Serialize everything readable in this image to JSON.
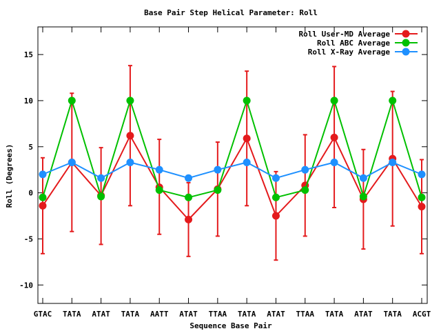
{
  "chart_data": {
    "type": "line",
    "title": "Base Pair Step Helical Parameter: Roll",
    "xlabel": "Sequence Base Pair",
    "ylabel": "Roll (Degrees)",
    "ylim": [
      -12,
      18
    ],
    "yticks": [
      -10,
      -5,
      0,
      5,
      10,
      15
    ],
    "categories": [
      "GTAC",
      "TATA",
      "ATAT",
      "TATA",
      "AATT",
      "ATAT",
      "TTAA",
      "TATA",
      "ATAT",
      "TTAA",
      "TATA",
      "ATAT",
      "TATA",
      "ACGT"
    ],
    "grid": false,
    "legend_position": "top-right",
    "series": [
      {
        "name": "Roll User-MD Average",
        "color": "#e41a1c",
        "values": [
          -1.4,
          3.3,
          -0.3,
          6.2,
          0.6,
          -2.9,
          0.4,
          5.9,
          -2.5,
          0.8,
          6.0,
          -0.7,
          3.7,
          -1.5
        ],
        "error_low": [
          -6.6,
          -4.2,
          -5.6,
          -1.4,
          -4.5,
          -6.9,
          -4.7,
          -1.4,
          -7.3,
          -4.7,
          -1.6,
          -6.1,
          -3.6,
          -6.6
        ],
        "error_high": [
          3.8,
          10.8,
          4.9,
          13.8,
          5.8,
          1.1,
          5.5,
          13.2,
          2.3,
          6.3,
          13.7,
          4.7,
          11.0,
          3.6
        ]
      },
      {
        "name": "Roll ABC Average",
        "color": "#00c000",
        "values": [
          -0.5,
          10.0,
          -0.4,
          10.0,
          0.3,
          -0.5,
          0.3,
          10.0,
          -0.5,
          0.3,
          10.0,
          -0.4,
          10.0,
          -0.5
        ]
      },
      {
        "name": "Roll X-Ray Average",
        "color": "#1e90ff",
        "values": [
          2.0,
          3.3,
          1.6,
          3.3,
          2.5,
          1.6,
          2.5,
          3.3,
          1.6,
          2.5,
          3.3,
          1.6,
          3.3,
          2.0
        ]
      }
    ]
  }
}
